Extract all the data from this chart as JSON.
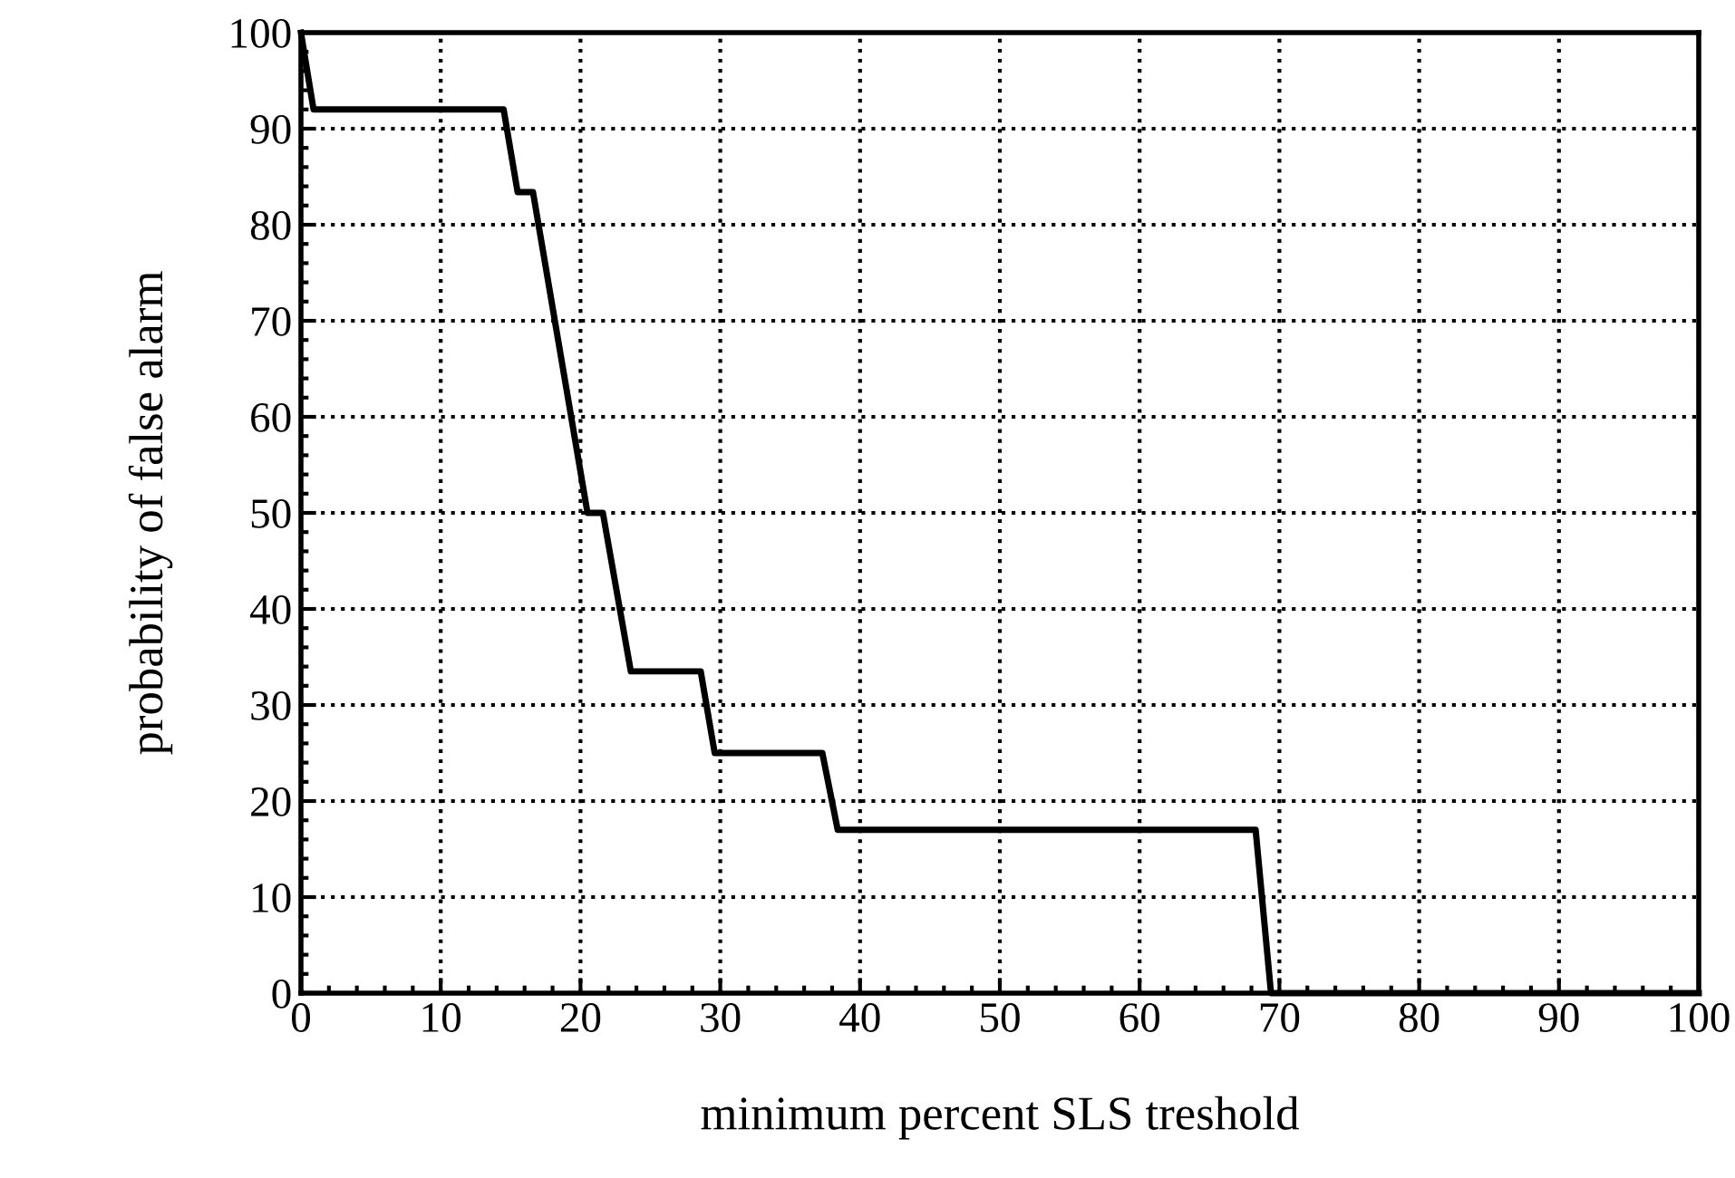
{
  "chart_data": {
    "type": "line",
    "xlabel": "minimum percent SLS treshold",
    "ylabel": "probability of false alarm",
    "x": [
      0,
      0.9,
      14.5,
      15.5,
      16.6,
      20.5,
      21.6,
      23.6,
      28.6,
      29.6,
      37.3,
      38.4,
      68.3,
      69.4,
      100
    ],
    "series": [
      {
        "color": "#000000",
        "values": [
          100,
          92,
          92,
          83.4,
          83.4,
          50,
          50,
          33.5,
          33.5,
          25,
          25,
          17,
          17,
          0,
          0
        ]
      }
    ],
    "xlim": [
      0,
      100
    ],
    "ylim": [
      0,
      100
    ],
    "xticks": [
      0,
      10,
      20,
      30,
      40,
      50,
      60,
      70,
      80,
      90,
      100
    ],
    "yticks": [
      0,
      10,
      20,
      30,
      40,
      50,
      60,
      70,
      80,
      90,
      100
    ],
    "grid": true,
    "marker": "none",
    "line_style": "solid",
    "legend": false
  }
}
